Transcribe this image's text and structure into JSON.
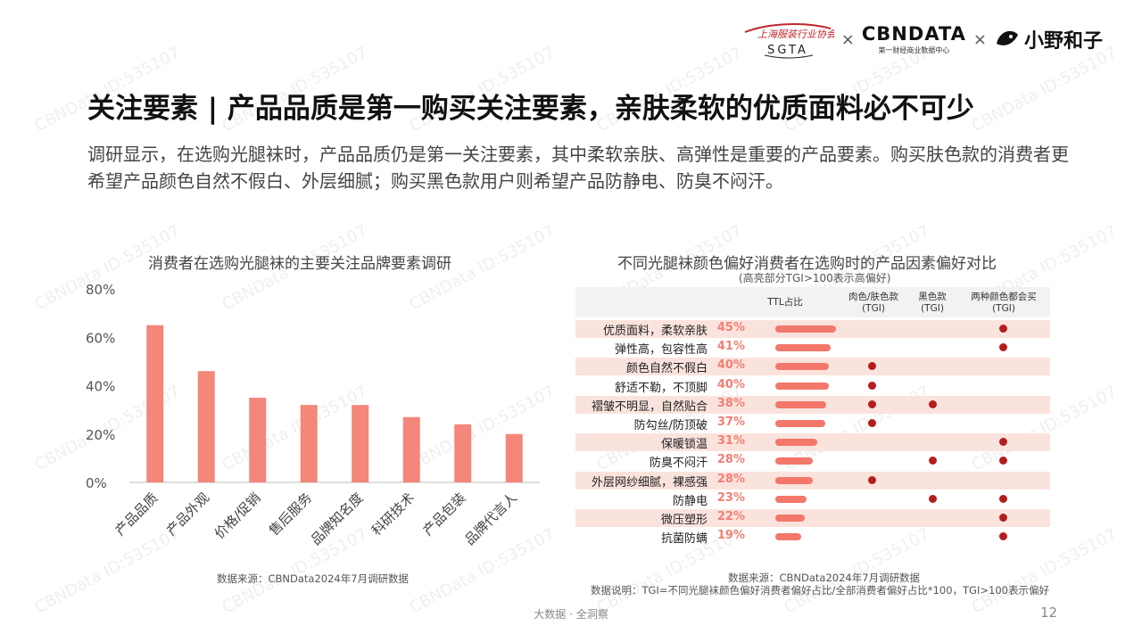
{
  "header": {
    "logo_sgta_text": "SGTA",
    "separator": "×",
    "cbn_main": "CBNDATA",
    "cbn_sub": "第一财经商业数据中心",
    "xiaoye_text": "小野和子"
  },
  "title": "关注要素 | 产品品质是第一购买关注要素，亲肤柔软的优质面料必不可少",
  "description": "调研显示，在选购光腿袜时，产品品质仍是第一关注要素，其中柔软亲肤、高弹性是重要的产品要素。购买肤色款的消费者更希望产品颜色自然不假白、外层细腻；购买黑色款用户则希望产品防静电、防臭不闷汗。",
  "left_source": "数据来源：CBNData2024年7月调研数据",
  "right_source_1": "数据来源：CBNData2024年7月调研数据",
  "right_source_2": "数据说明：TGI=不同光腿袜颜色偏好消费者偏好占比/全部消费者偏好占比*100，TGI>100表示偏好",
  "footer": "大数据 · 全洞察",
  "page_number": "12",
  "watermark": "CBNData ID:535107",
  "chart_data": [
    {
      "type": "bar",
      "title": "消费者在选购光腿袜的主要关注品牌要素调研",
      "categories": [
        "产品品质",
        "产品外观",
        "价格/促销",
        "售后服务",
        "品牌知名度",
        "科研技术",
        "产品包装",
        "品牌代言人"
      ],
      "values": [
        65,
        46,
        35,
        32,
        32,
        27,
        24,
        20
      ],
      "ylim": [
        0,
        80
      ],
      "yticks": [
        "80%",
        "60%",
        "40%",
        "20%",
        "0%"
      ],
      "color": "#f4867a"
    },
    {
      "type": "table",
      "title": "不同光腿袜颜色偏好消费者在选购时的产品因素偏好对比",
      "subtitle": "(高亮部分TGI>100表示高偏好)",
      "columns": [
        "TTL占比",
        "肉色/肤色款\n(TGI)",
        "黑色款\n(TGI)",
        "两种颜色都会买\n(TGI)"
      ],
      "rows": [
        {
          "label": "优质面料，柔软亲肤",
          "pct": "45%",
          "value": 45,
          "skin": false,
          "black": false,
          "both": true
        },
        {
          "label": "弹性高，包容性高",
          "pct": "41%",
          "value": 41,
          "skin": false,
          "black": false,
          "both": true
        },
        {
          "label": "颜色自然不假白",
          "pct": "40%",
          "value": 40,
          "skin": true,
          "black": false,
          "both": false
        },
        {
          "label": "舒适不勒，不顶脚",
          "pct": "40%",
          "value": 40,
          "skin": true,
          "black": false,
          "both": false
        },
        {
          "label": "褶皱不明显，自然贴合",
          "pct": "38%",
          "value": 38,
          "skin": true,
          "black": true,
          "both": false
        },
        {
          "label": "防勾丝/防顶破",
          "pct": "37%",
          "value": 37,
          "skin": true,
          "black": false,
          "both": false
        },
        {
          "label": "保暖锁温",
          "pct": "31%",
          "value": 31,
          "skin": false,
          "black": false,
          "both": true
        },
        {
          "label": "防臭不闷汗",
          "pct": "28%",
          "value": 28,
          "skin": false,
          "black": true,
          "both": true
        },
        {
          "label": "外层网纱细腻，裸感强",
          "pct": "28%",
          "value": 28,
          "skin": true,
          "black": false,
          "both": false
        },
        {
          "label": "防静电",
          "pct": "23%",
          "value": 23,
          "skin": false,
          "black": true,
          "both": true
        },
        {
          "label": "微压塑形",
          "pct": "22%",
          "value": 22,
          "skin": false,
          "black": false,
          "both": true
        },
        {
          "label": "抗菌防螨",
          "pct": "19%",
          "value": 19,
          "skin": false,
          "black": false,
          "both": true
        }
      ],
      "bar_color": "#f4776b",
      "dot_color": "#b51d1d",
      "shade_color": "#fbe3dd"
    }
  ]
}
